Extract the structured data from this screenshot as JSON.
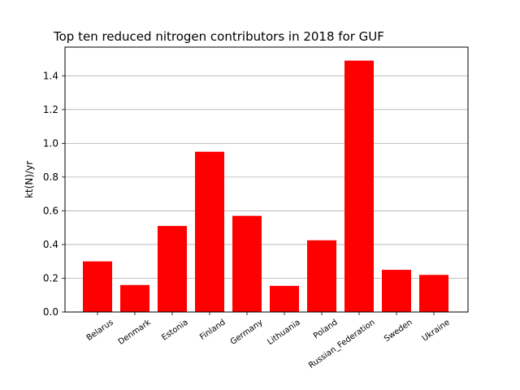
{
  "chart_data": {
    "type": "bar",
    "title": "Top ten reduced nitrogen contributors in 2018 for  GUF",
    "xlabel": "",
    "ylabel": "kt(N)/yr",
    "categories": [
      "Belarus",
      "Denmark",
      "Estonia",
      "Finland",
      "Germany",
      "Lithuania",
      "Poland",
      "Russian_Federation",
      "Sweden",
      "Ukraine"
    ],
    "values": [
      0.3,
      0.16,
      0.51,
      0.95,
      0.57,
      0.155,
      0.425,
      1.49,
      0.25,
      0.22
    ],
    "ylim": [
      0,
      1.57
    ],
    "yticks": [
      0.0,
      0.2,
      0.4,
      0.6,
      0.8,
      1.0,
      1.2,
      1.4
    ],
    "ytick_labels": [
      "0.0",
      "0.2",
      "0.4",
      "0.6",
      "0.8",
      "1.0",
      "1.2",
      "1.4"
    ],
    "grid": "horizontal",
    "bar_color": "#ff0000",
    "grid_color": "#b0b0b0",
    "xtick_rotation_deg": -35
  }
}
